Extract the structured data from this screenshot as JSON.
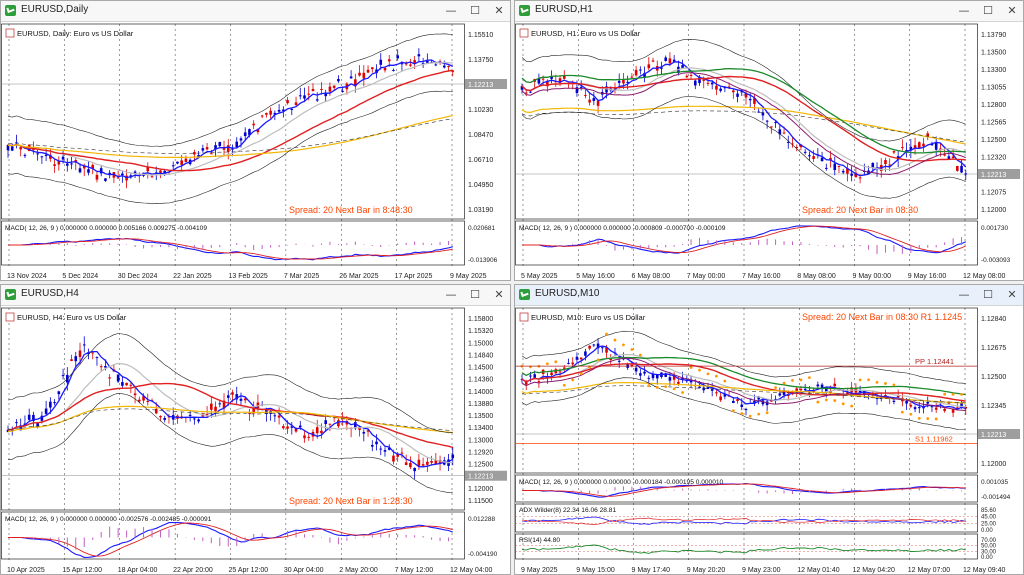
{
  "windows": [
    {
      "id": "d1",
      "title": "EURUSD,Daily",
      "active": false,
      "legend": "EURUSD, Daily:  Euro vs US Dollar",
      "spread": "Spread: 20  Next Bar in 8:48:30",
      "macd_label": "MACD( 12, 26, 9 ) 0.000000  0.000000  0.005166  0.009275  -0.004109",
      "prices": [
        "1.15510",
        "1.13750",
        "1.12213",
        "1.10230",
        "1.08470",
        "1.06710",
        "1.04950",
        "1.03190"
      ],
      "current_price": "1.12213",
      "macd_scale": [
        "0.020681",
        "-0.013906"
      ],
      "dates": [
        "13 Nov 2024",
        "5 Dec 2024",
        "30 Dec 2024",
        "22 Jan 2025",
        "13 Feb 2025",
        "7 Mar 2025",
        "26 Mar 2025",
        "17 Apr 2025",
        "9 May 2025"
      ],
      "levels": []
    },
    {
      "id": "h1",
      "title": "EURUSD,H1",
      "active": false,
      "legend": "EURUSD, H1:  Euro vs US Dollar",
      "spread": "Spread: 20  Next Bar in 08:30",
      "macd_label": "MACD( 12, 26, 9 ) 0.000000  0.000000  -0.000809  -0.000700  -0.000109",
      "prices": [
        "1.13790",
        "1.13500",
        "1.13300",
        "1.13055",
        "1.12800",
        "1.12565",
        "1.12500",
        "1.12320",
        "1.12213",
        "1.12075",
        "1.12000"
      ],
      "current_price": "1.12213",
      "macd_scale": [
        "0.001730",
        "-0.003093"
      ],
      "dates": [
        "5 May 2025",
        "5 May 16:00",
        "6 May 08:00",
        "7 May 00:00",
        "7 May 16:00",
        "8 May 08:00",
        "9 May 00:00",
        "9 May 16:00",
        "12 May 08:00"
      ],
      "levels": []
    },
    {
      "id": "h4",
      "title": "EURUSD,H4",
      "active": false,
      "legend": "EURUSD, H4:  Euro vs US Dollar",
      "spread": "Spread: 20  Next Bar in 1:28:30",
      "macd_label": "MACD( 12, 26, 9 ) 0.000000  0.000000  -0.002576  -0.002485  -0.000091",
      "prices": [
        "1.15800",
        "1.15320",
        "1.15000",
        "1.14840",
        "1.14500",
        "1.14360",
        "1.14000",
        "1.13880",
        "1.13500",
        "1.13400",
        "1.13000",
        "1.12920",
        "1.12500",
        "1.12213",
        "1.12000",
        "1.11500"
      ],
      "current_price": "1.12213",
      "macd_scale": [
        "0.012288",
        "-0.004190"
      ],
      "dates": [
        "10 Apr 2025",
        "15 Apr 12:00",
        "18 Apr 04:00",
        "22 Apr 20:00",
        "25 Apr 12:00",
        "30 Apr 04:00",
        "2 May 20:00",
        "7 May 12:00",
        "12 May 04:00"
      ],
      "levels": []
    },
    {
      "id": "m10",
      "title": "EURUSD,M10",
      "active": true,
      "legend": "EURUSD, M10:  Euro vs US Dollar",
      "spread": "Spread: 20  Next Bar in 08:30",
      "spread_extra": "R1 1.1245",
      "macd_label": "MACD( 12, 26, 9 ) 0.000000  0.000000  -0.000184  -0.000195  0.000010",
      "adx_label": "ADX Wilder(8) 22.34 16.06 28.81",
      "rsi_label": "RSI(14) 44.80",
      "prices": [
        "1.12840",
        "1.12675",
        "1.12500",
        "1.12345",
        "1.12213",
        "1.12000"
      ],
      "current_price": "1.12213",
      "macd_scale": [
        "0.001035",
        "-0.001494"
      ],
      "adx_scale": [
        "85.60",
        "45.00",
        "25.00",
        "0.00"
      ],
      "rsi_scale": [
        "70.00",
        "50.00",
        "30.00",
        "0.00"
      ],
      "dates": [
        "9 May 2025",
        "9 May 15:00",
        "9 May 17:40",
        "9 May 20:20",
        "9 May 23:00",
        "12 May 01:40",
        "12 May 04:20",
        "12 May 07:00",
        "12 May 09:40"
      ],
      "levels": [
        {
          "label": "PP 1.12441",
          "color": "#b22222"
        },
        {
          "label": "S1 1.11962",
          "color": "#ff4500"
        }
      ]
    }
  ]
}
